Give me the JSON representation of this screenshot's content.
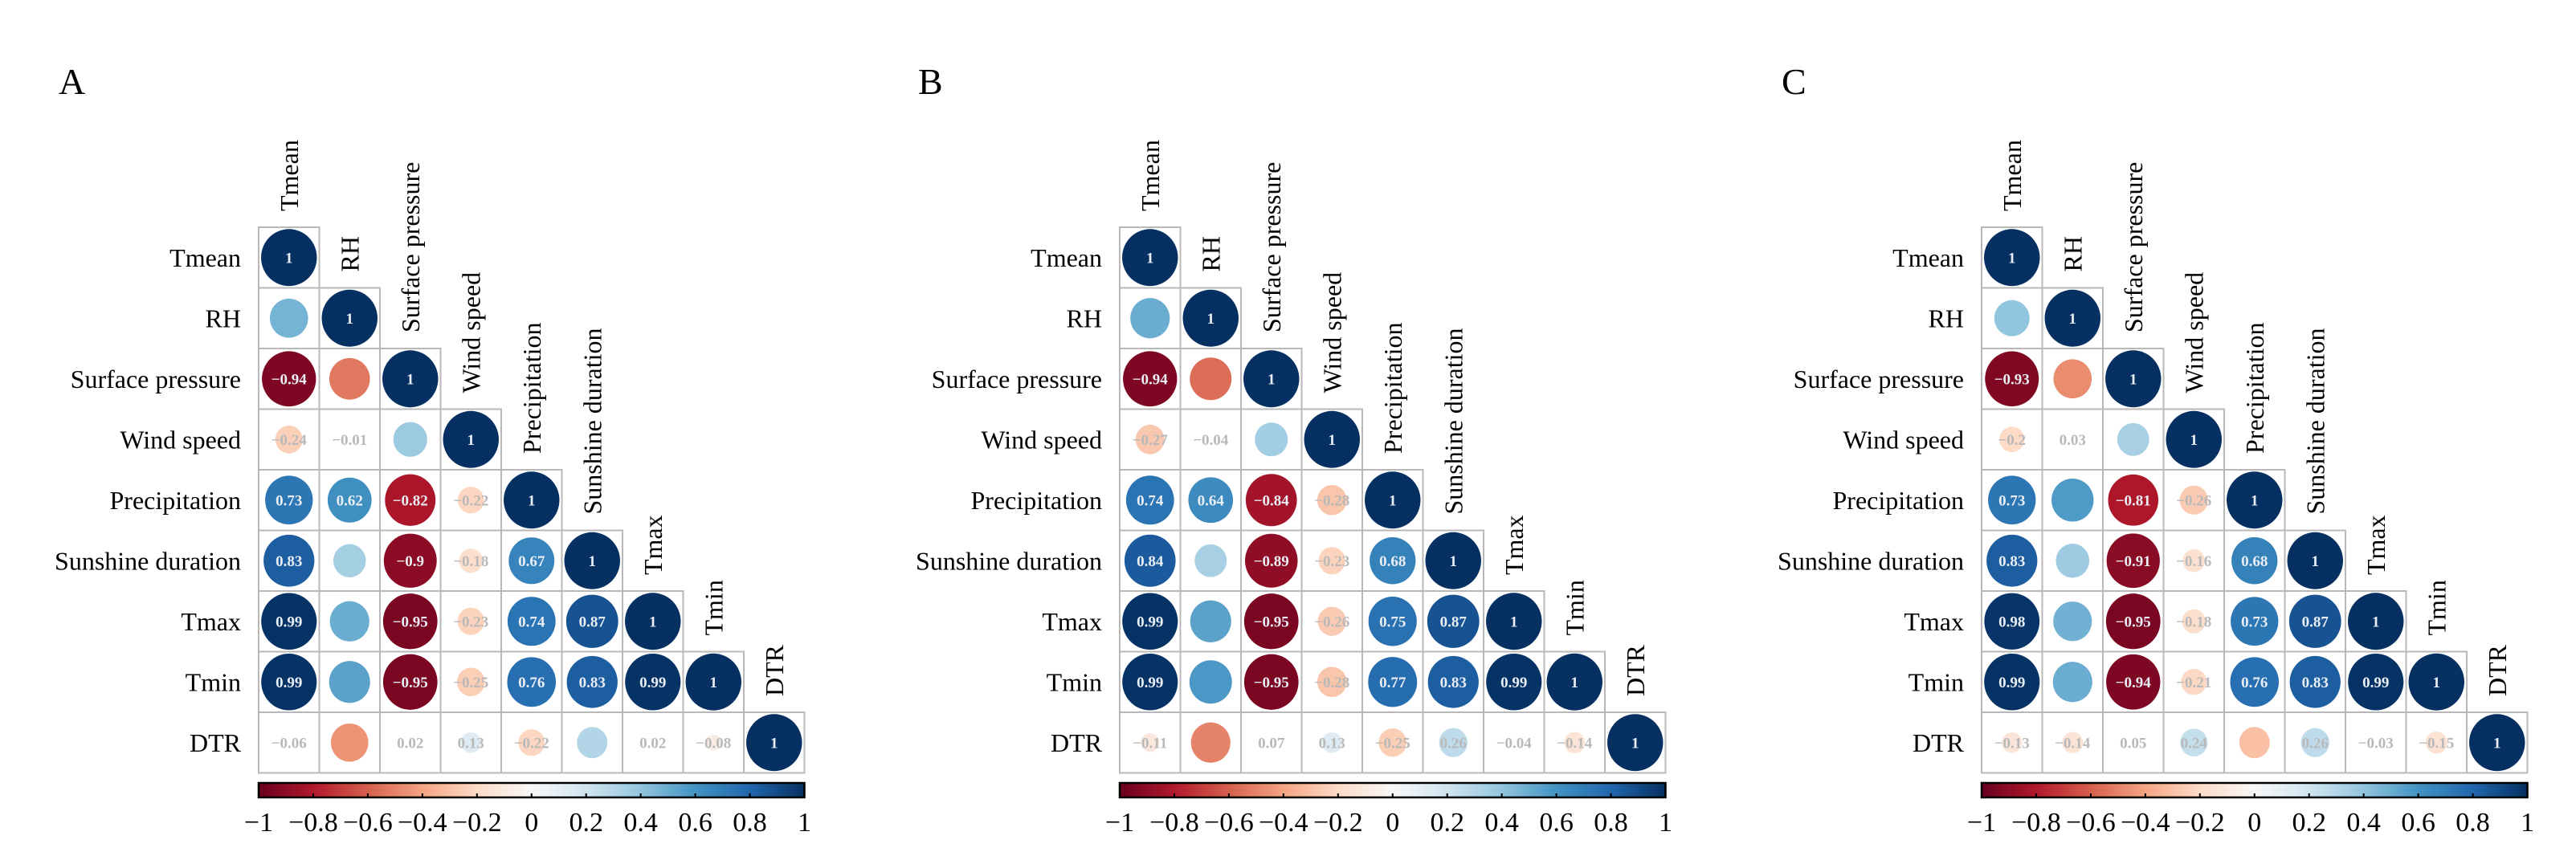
{
  "figure": {
    "panels_count": 3
  },
  "chart_data": [
    {
      "type": "heatmap",
      "subtype": "correlation-matrix-lower-triangle-circles",
      "panel_label": "A",
      "variables": [
        "Tmean",
        "RH",
        "Surface pressure",
        "Wind speed",
        "Precipitation",
        "Sunshine duration",
        "Tmax",
        "Tmin",
        "DTR"
      ],
      "matrix": [
        [
          1
        ],
        [
          0.47,
          1
        ],
        [
          -0.94,
          -0.53,
          1
        ],
        [
          -0.24,
          -0.01,
          0.37,
          1
        ],
        [
          0.73,
          0.62,
          -0.82,
          -0.22,
          1
        ],
        [
          0.83,
          0.34,
          -0.9,
          -0.18,
          0.67,
          1
        ],
        [
          0.99,
          0.5,
          -0.95,
          -0.23,
          0.74,
          0.87,
          1
        ],
        [
          0.99,
          0.54,
          -0.95,
          -0.25,
          0.76,
          0.83,
          0.99,
          1
        ],
        [
          -0.06,
          -0.45,
          0.02,
          0.13,
          -0.22,
          0.3,
          0.02,
          -0.08,
          1
        ]
      ],
      "colorbar": {
        "range": [
          -1,
          1
        ],
        "ticks": [
          "−1",
          "−0.8",
          "−0.6",
          "−0.4",
          "−0.2",
          "0",
          "0.2",
          "0.4",
          "0.6",
          "0.8",
          "1"
        ],
        "low_color": "#67001f",
        "mid_color": "#f7f7f7",
        "high_color": "#053061",
        "placement": "bottom"
      }
    },
    {
      "type": "heatmap",
      "subtype": "correlation-matrix-lower-triangle-circles",
      "panel_label": "B",
      "variables": [
        "Tmean",
        "RH",
        "Surface pressure",
        "Wind speed",
        "Precipitation",
        "Sunshine duration",
        "Tmax",
        "Tmin",
        "DTR"
      ],
      "matrix": [
        [
          1
        ],
        [
          0.5,
          1
        ],
        [
          -0.94,
          -0.56,
          1
        ],
        [
          -0.27,
          -0.04,
          0.35,
          1
        ],
        [
          0.74,
          0.64,
          -0.84,
          -0.28,
          1
        ],
        [
          0.84,
          0.33,
          -0.89,
          -0.23,
          0.68,
          1
        ],
        [
          0.99,
          0.54,
          -0.95,
          -0.26,
          0.75,
          0.87,
          1
        ],
        [
          0.99,
          0.58,
          -0.95,
          -0.28,
          0.77,
          0.83,
          0.99,
          1
        ],
        [
          -0.11,
          -0.5,
          0.07,
          0.13,
          -0.25,
          0.26,
          -0.04,
          -0.14,
          1
        ]
      ],
      "colorbar": {
        "range": [
          -1,
          1
        ],
        "ticks": [
          "−1",
          "−0.8",
          "−0.6",
          "−0.4",
          "−0.2",
          "0",
          "0.2",
          "0.4",
          "0.6",
          "0.8",
          "1"
        ],
        "low_color": "#67001f",
        "mid_color": "#f7f7f7",
        "high_color": "#053061",
        "placement": "bottom"
      }
    },
    {
      "type": "heatmap",
      "subtype": "correlation-matrix-lower-triangle-circles",
      "panel_label": "C",
      "variables": [
        "Tmean",
        "RH",
        "Surface pressure",
        "Wind speed",
        "Precipitation",
        "Sunshine duration",
        "Tmax",
        "Tmin",
        "DTR"
      ],
      "matrix": [
        [
          1
        ],
        [
          0.4,
          1
        ],
        [
          -0.93,
          -0.47,
          1
        ],
        [
          -0.2,
          0.03,
          0.33,
          1
        ],
        [
          0.73,
          0.57,
          -0.81,
          -0.26,
          1
        ],
        [
          0.83,
          0.36,
          -0.91,
          -0.16,
          0.68,
          1
        ],
        [
          0.98,
          0.48,
          -0.95,
          -0.18,
          0.73,
          0.87,
          1
        ],
        [
          0.99,
          0.5,
          -0.94,
          -0.21,
          0.76,
          0.83,
          0.99,
          1
        ],
        [
          -0.13,
          -0.14,
          0.05,
          0.24,
          -0.3,
          0.26,
          -0.03,
          -0.15,
          1
        ]
      ],
      "colorbar": {
        "range": [
          -1,
          1
        ],
        "ticks": [
          "−1",
          "−0.8",
          "−0.6",
          "−0.4",
          "−0.2",
          "0",
          "0.2",
          "0.4",
          "0.6",
          "0.8",
          "1"
        ],
        "low_color": "#67001f",
        "mid_color": "#f7f7f7",
        "high_color": "#053061",
        "placement": "bottom"
      }
    }
  ]
}
